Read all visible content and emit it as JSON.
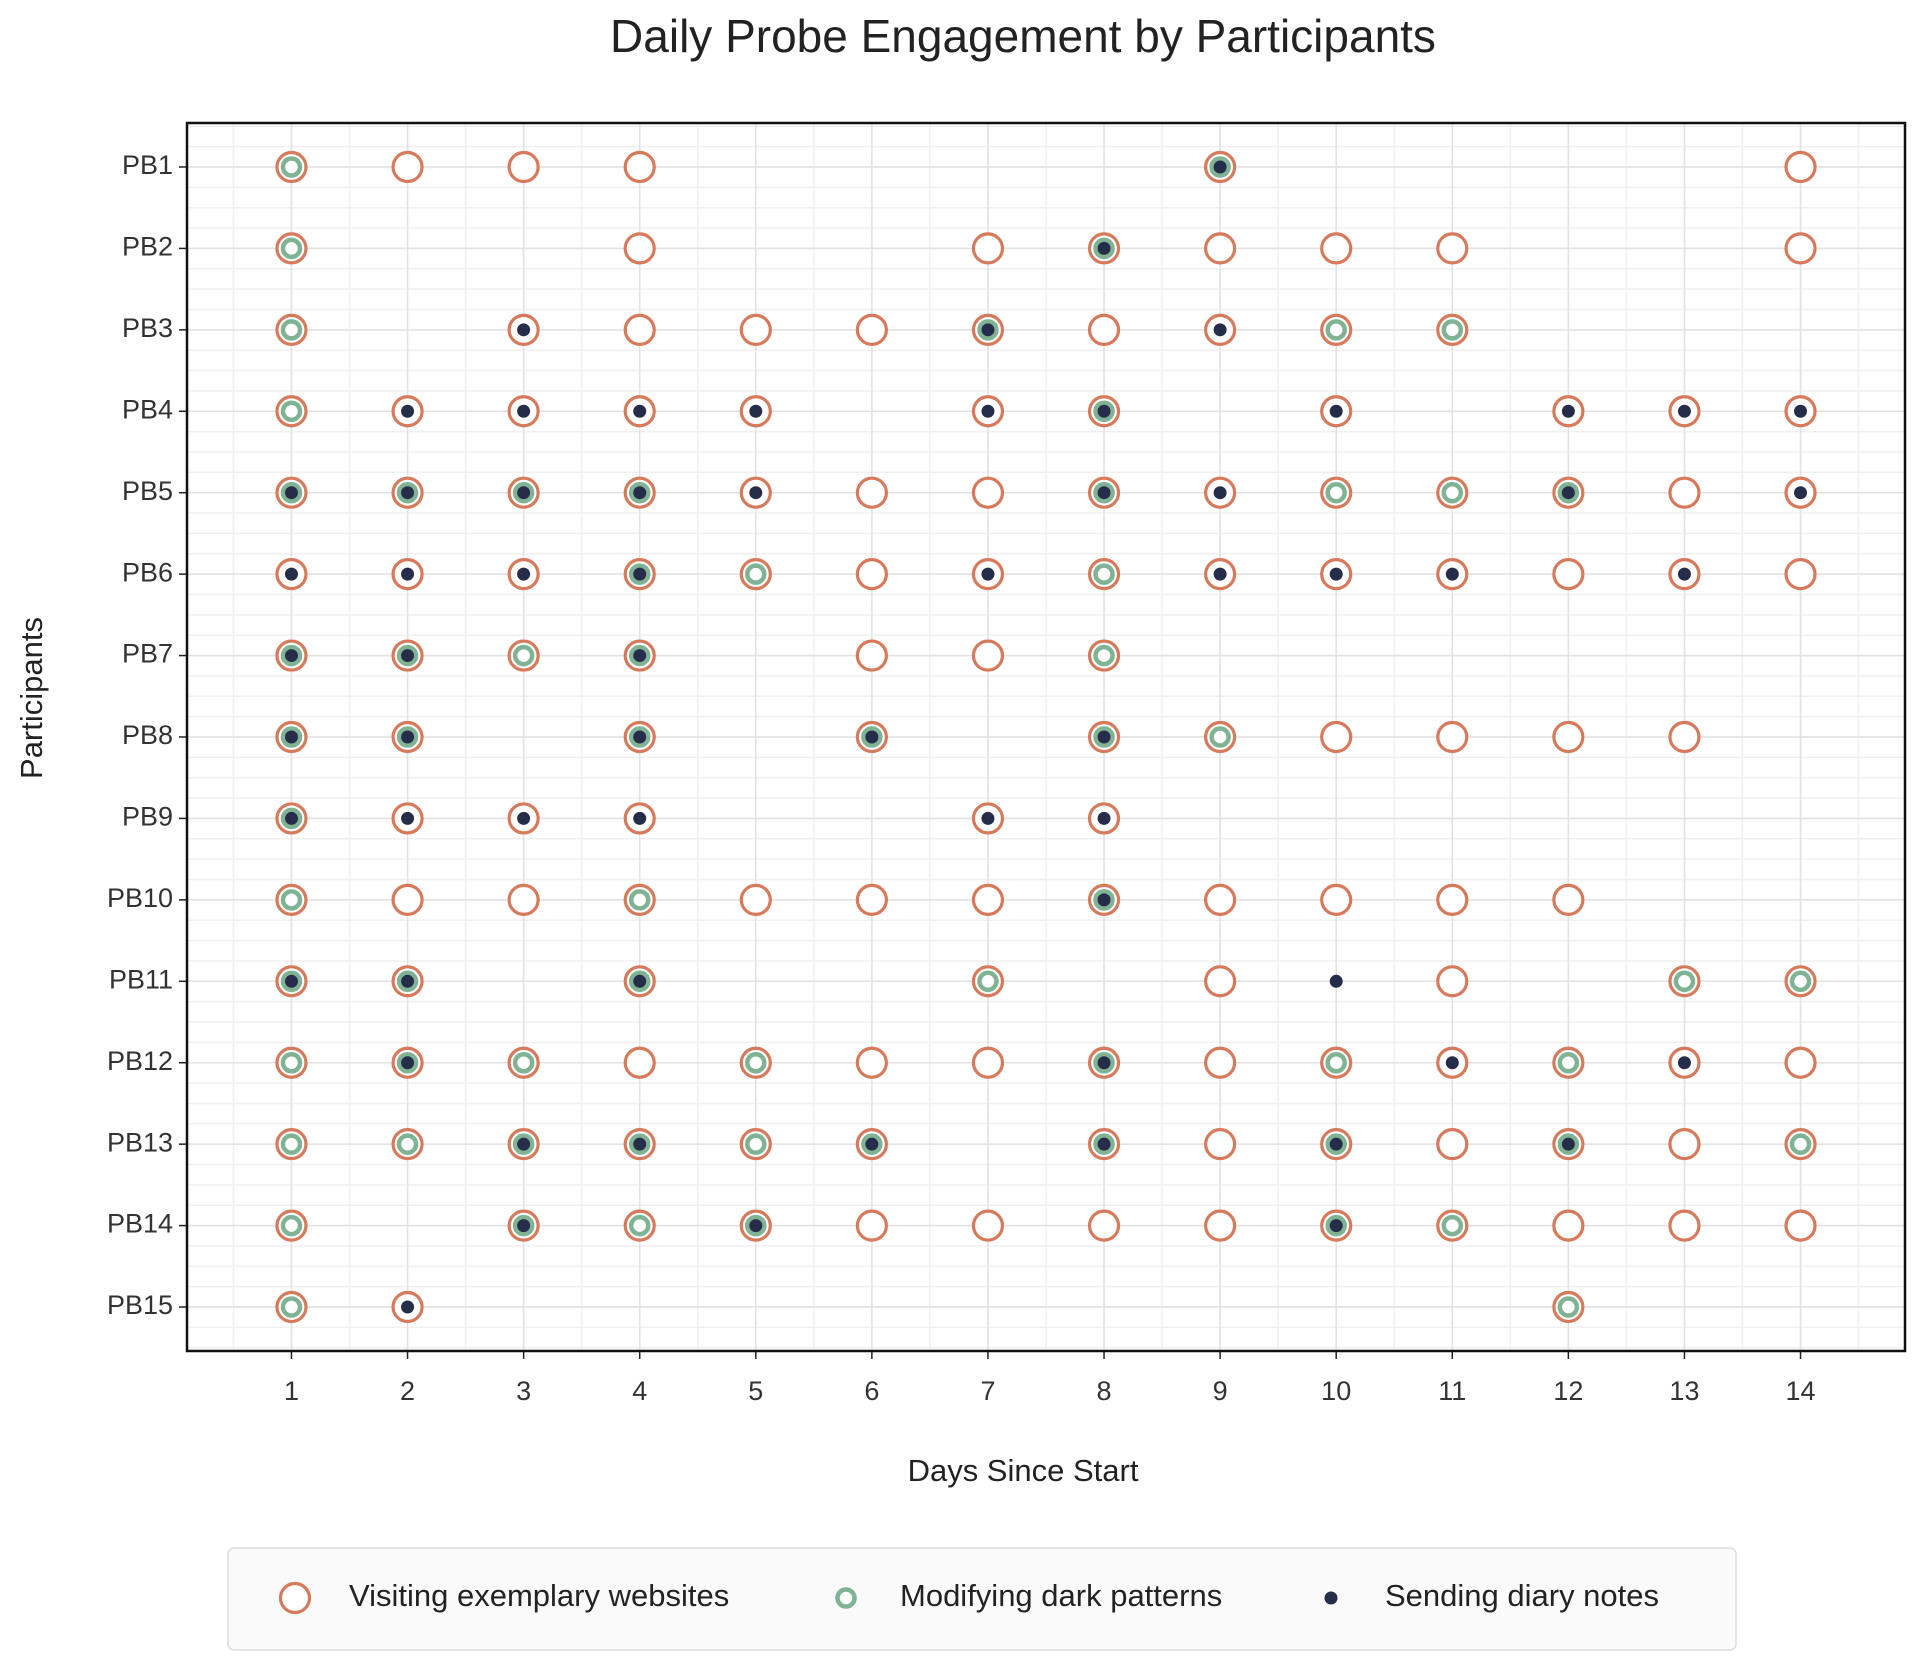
{
  "chart_data": {
    "type": "scatter",
    "title": "Daily Probe Engagement by Participants",
    "x_label": "Days Since Start",
    "y_label": "Participants",
    "categories": [
      "PB1",
      "PB2",
      "PB3",
      "PB4",
      "PB5",
      "PB6",
      "PB7",
      "PB8",
      "PB9",
      "PB10",
      "PB11",
      "PB12",
      "PB13",
      "PB14",
      "PB15"
    ],
    "xlim": [
      0.1,
      14.9
    ],
    "xticks": [
      1,
      2,
      3,
      4,
      5,
      6,
      7,
      8,
      9,
      10,
      11,
      12,
      13,
      14
    ],
    "grid": true,
    "minor_grid": true,
    "legend": "bottom",
    "series": [
      {
        "name": "Visiting exemplary websites",
        "color": "#d77a5b",
        "marker": "ring-large",
        "values": [
          [
            1,
            2,
            3,
            4,
            9,
            14
          ],
          [
            1,
            4,
            7,
            8,
            9,
            10,
            11,
            14
          ],
          [
            1,
            3,
            4,
            5,
            6,
            7,
            8,
            9,
            10,
            11
          ],
          [
            1,
            2,
            3,
            4,
            5,
            7,
            8,
            10,
            12,
            13,
            14
          ],
          [
            1,
            2,
            3,
            4,
            5,
            6,
            7,
            8,
            9,
            10,
            11,
            12,
            13,
            14
          ],
          [
            1,
            2,
            3,
            4,
            5,
            6,
            7,
            8,
            9,
            10,
            11,
            12,
            13,
            14
          ],
          [
            1,
            2,
            3,
            4,
            6,
            7,
            8
          ],
          [
            1,
            2,
            4,
            6,
            8,
            9,
            10,
            11,
            12,
            13
          ],
          [
            1,
            2,
            3,
            4,
            7,
            8
          ],
          [
            1,
            2,
            3,
            4,
            5,
            6,
            7,
            8,
            9,
            10,
            11,
            12
          ],
          [
            1,
            2,
            4,
            7,
            9,
            11,
            13,
            14
          ],
          [
            1,
            2,
            3,
            4,
            5,
            6,
            7,
            8,
            9,
            10,
            11,
            12,
            13,
            14
          ],
          [
            1,
            2,
            3,
            4,
            5,
            6,
            8,
            9,
            10,
            11,
            12,
            13,
            14
          ],
          [
            1,
            3,
            4,
            5,
            6,
            7,
            8,
            9,
            10,
            11,
            12,
            13,
            14
          ],
          [
            1,
            2,
            12
          ]
        ]
      },
      {
        "name": "Modifying dark patterns",
        "color": "#7fb394",
        "marker": "ring-small",
        "values": [
          [
            1,
            9
          ],
          [
            1,
            8
          ],
          [
            1,
            7,
            10,
            11
          ],
          [
            1,
            8
          ],
          [
            1,
            2,
            3,
            4,
            8,
            10,
            11,
            12
          ],
          [
            4,
            5,
            8
          ],
          [
            1,
            2,
            3,
            4,
            8
          ],
          [
            1,
            2,
            4,
            6,
            8,
            9
          ],
          [
            1
          ],
          [
            1,
            4,
            8
          ],
          [
            1,
            2,
            4,
            7,
            13,
            14
          ],
          [
            1,
            2,
            3,
            5,
            8,
            10,
            12
          ],
          [
            1,
            2,
            3,
            4,
            5,
            6,
            8,
            10,
            12,
            14
          ],
          [
            1,
            3,
            4,
            5,
            10,
            11
          ],
          [
            1,
            12
          ]
        ]
      },
      {
        "name": "Sending diary notes",
        "color": "#262d4a",
        "marker": "dot",
        "values": [
          [
            9
          ],
          [
            8
          ],
          [
            3,
            7,
            9
          ],
          [
            2,
            3,
            4,
            5,
            7,
            8,
            10,
            12,
            13,
            14
          ],
          [
            1,
            2,
            3,
            4,
            5,
            8,
            9,
            12,
            14
          ],
          [
            1,
            2,
            3,
            4,
            7,
            9,
            10,
            11,
            13
          ],
          [
            1,
            2,
            4
          ],
          [
            1,
            2,
            4,
            6,
            8
          ],
          [
            1,
            2,
            3,
            4,
            7,
            8
          ],
          [
            8
          ],
          [
            1,
            2,
            4,
            10
          ],
          [
            2,
            8,
            11,
            13
          ],
          [
            3,
            4,
            6,
            8,
            10,
            12
          ],
          [
            3,
            5,
            10
          ],
          [
            2
          ]
        ]
      }
    ]
  }
}
